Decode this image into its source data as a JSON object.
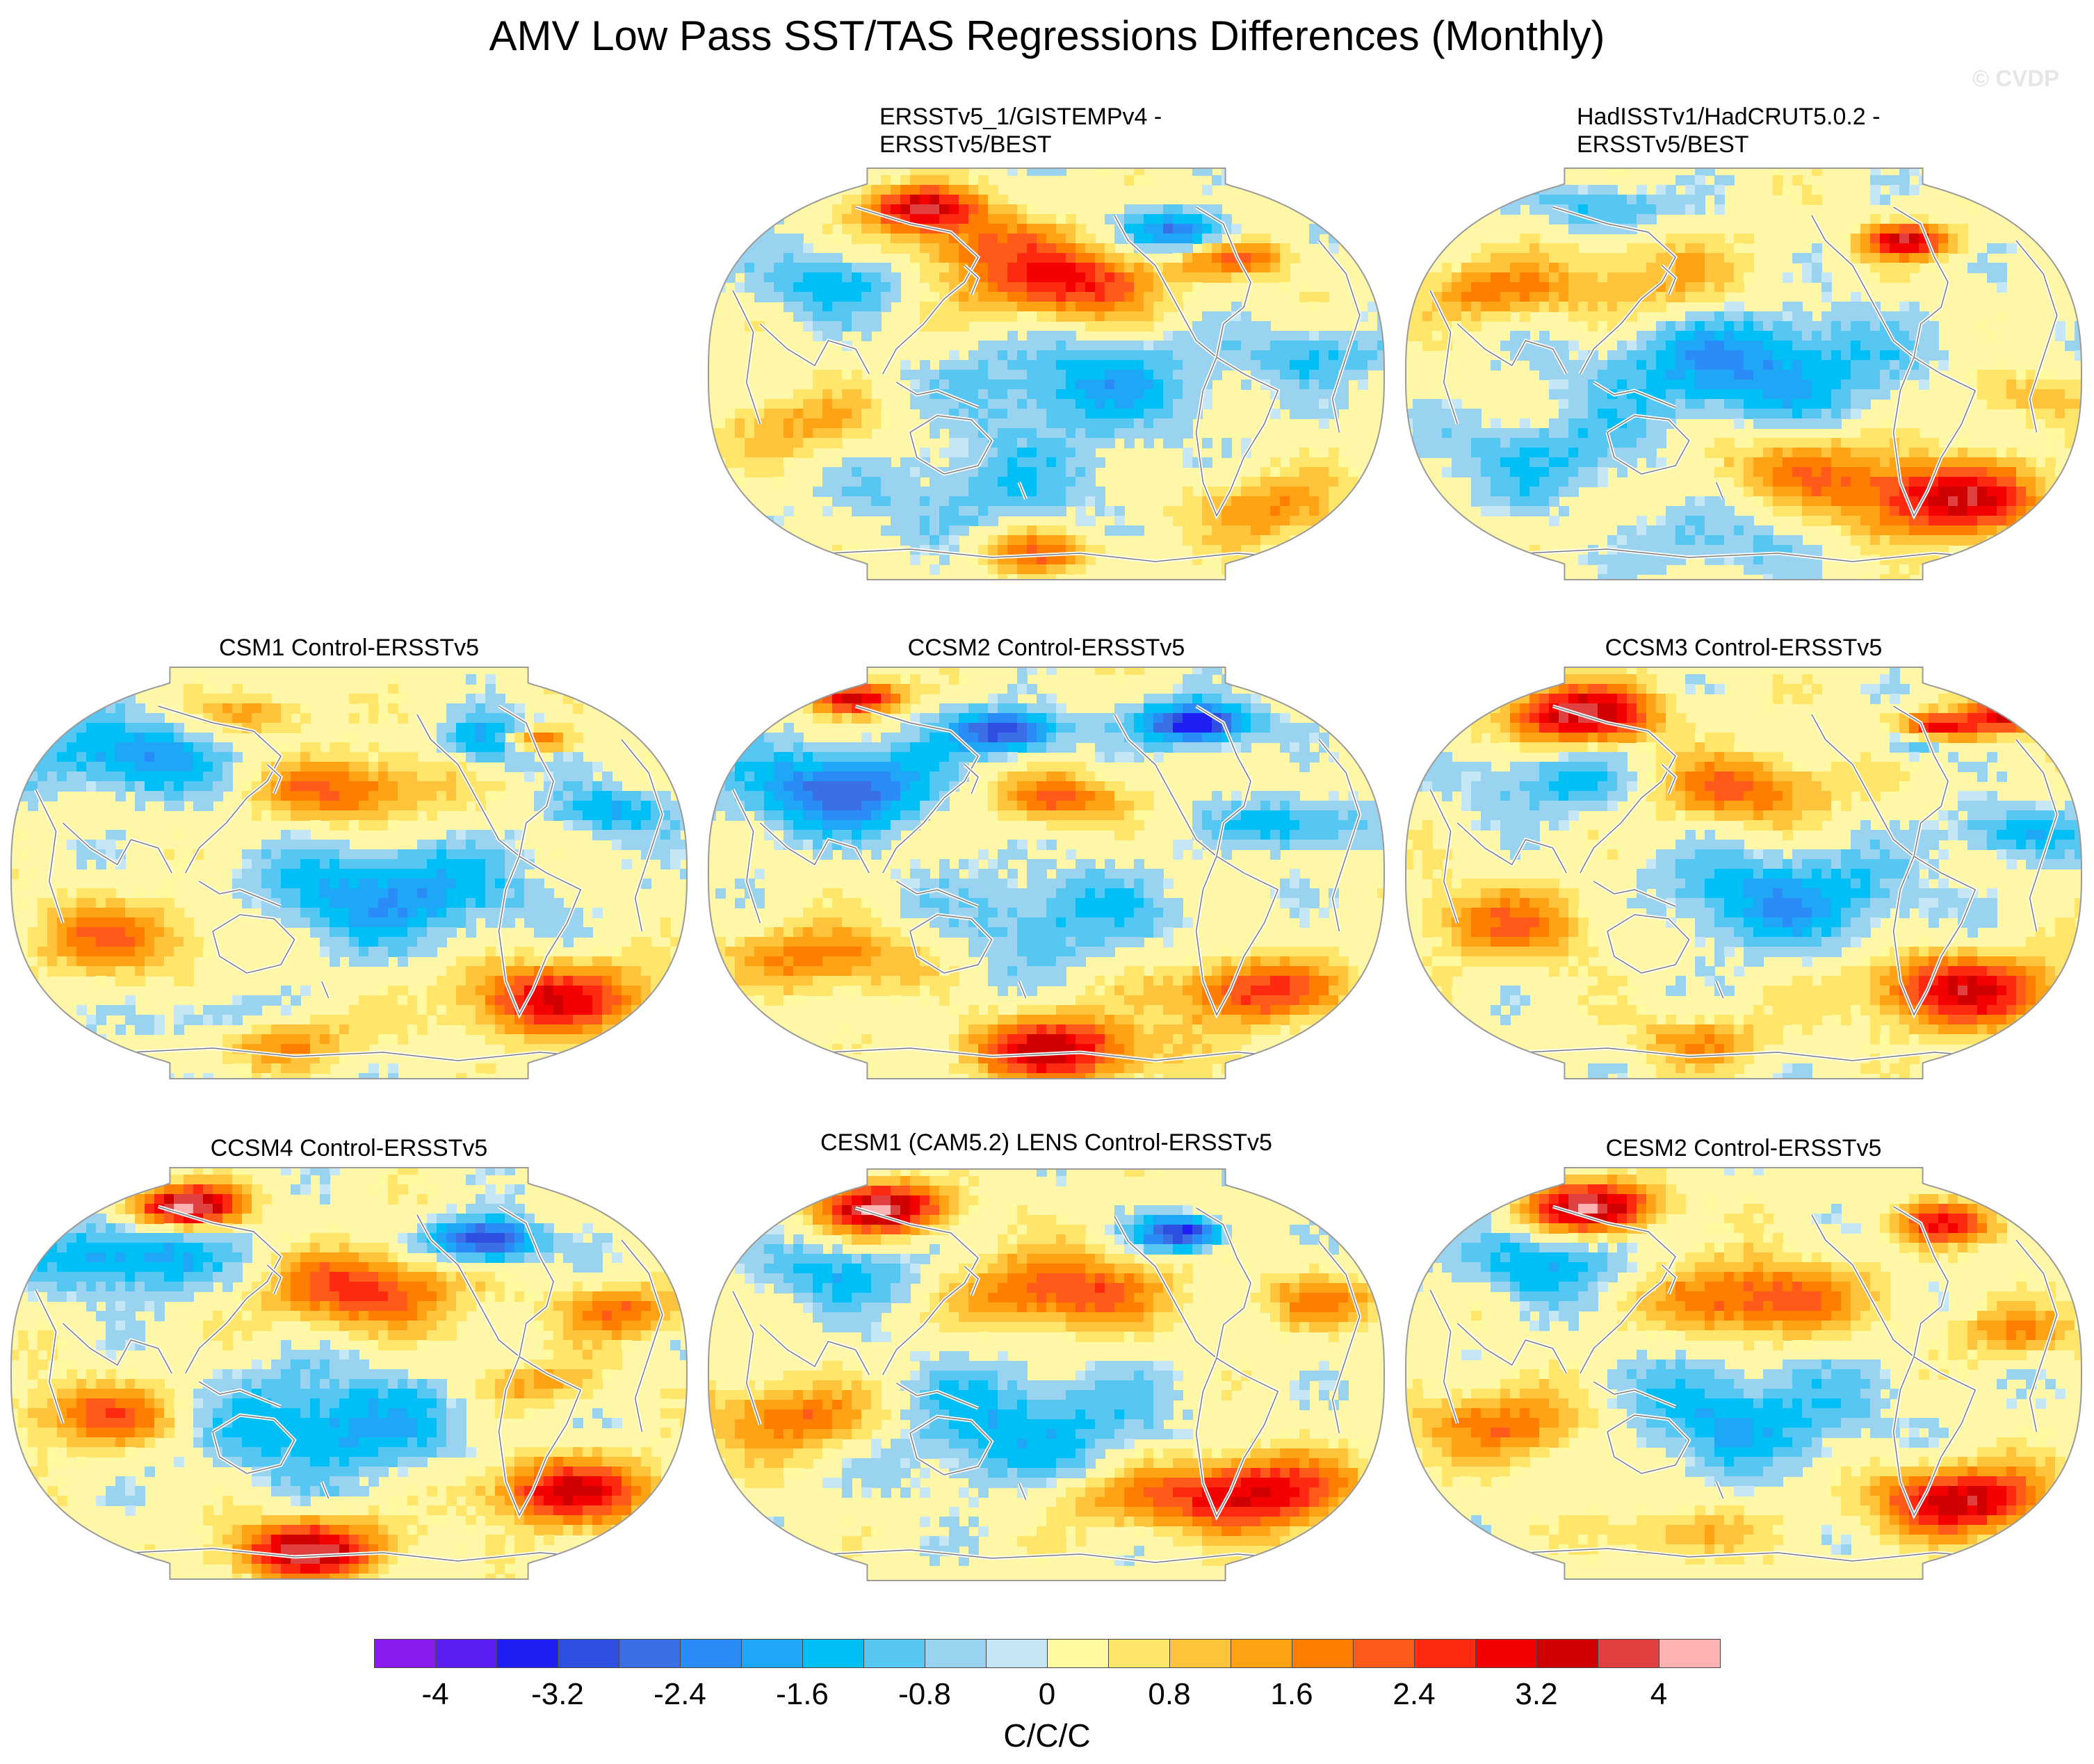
{
  "figure": {
    "title": "AMV Low Pass SST/TAS Regressions Differences (Monthly)",
    "watermark": "© CVDP"
  },
  "panels": [
    {
      "id": "p1",
      "title_lines": [
        "ERSSTv5_1/GISTEMPv4 -",
        "ERSSTv5/BEST"
      ],
      "seed": 3,
      "blobs": [
        [
          0.52,
          0.28,
          3.0,
          0.09
        ],
        [
          0.38,
          0.18,
          1.6,
          0.07
        ],
        [
          0.56,
          0.52,
          -1.6,
          0.12
        ],
        [
          0.7,
          0.16,
          -2.6,
          0.05
        ],
        [
          0.32,
          0.1,
          3.6,
          0.05
        ],
        [
          0.78,
          0.22,
          2.0,
          0.05
        ],
        [
          0.4,
          0.78,
          -1.0,
          0.14
        ],
        [
          0.82,
          0.82,
          1.6,
          0.08
        ],
        [
          0.48,
          0.92,
          2.0,
          0.06
        ],
        [
          0.14,
          0.62,
          1.4,
          0.08
        ],
        [
          0.18,
          0.28,
          -1.4,
          0.08
        ],
        [
          0.9,
          0.45,
          -1.2,
          0.07
        ]
      ]
    },
    {
      "id": "p2",
      "title_lines": [
        "HadISSTv1/HadCRUT5.0.2 -",
        "ERSSTv5/BEST"
      ],
      "seed": 7,
      "blobs": [
        [
          0.5,
          0.48,
          -2.0,
          0.14
        ],
        [
          0.8,
          0.8,
          3.4,
          0.09
        ],
        [
          0.36,
          0.28,
          1.4,
          0.1
        ],
        [
          0.74,
          0.18,
          3.6,
          0.04
        ],
        [
          0.3,
          0.1,
          -1.4,
          0.06
        ],
        [
          0.12,
          0.3,
          1.6,
          0.07
        ],
        [
          0.2,
          0.7,
          -1.2,
          0.1
        ],
        [
          0.58,
          0.72,
          1.6,
          0.09
        ],
        [
          0.9,
          0.55,
          1.2,
          0.06
        ],
        [
          0.46,
          0.9,
          -1.0,
          0.08
        ]
      ]
    },
    {
      "id": "p3",
      "title_lines": [
        "CSM1 Control-ERSSTv5"
      ],
      "seed": 11,
      "blobs": [
        [
          0.5,
          0.3,
          2.2,
          0.08
        ],
        [
          0.56,
          0.55,
          -2.0,
          0.12
        ],
        [
          0.74,
          0.18,
          -3.4,
          0.05
        ],
        [
          0.77,
          0.18,
          4.6,
          0.035
        ],
        [
          0.8,
          0.8,
          3.0,
          0.09
        ],
        [
          0.18,
          0.22,
          -2.0,
          0.09
        ],
        [
          0.16,
          0.65,
          1.8,
          0.09
        ],
        [
          0.36,
          0.12,
          1.6,
          0.05
        ],
        [
          0.4,
          0.9,
          2.0,
          0.06
        ],
        [
          0.3,
          0.85,
          -1.2,
          0.06
        ],
        [
          0.9,
          0.35,
          -1.6,
          0.06
        ]
      ]
    },
    {
      "id": "p4",
      "title_lines": [
        "CCSM2 Control-ERSSTv5"
      ],
      "seed": 19,
      "blobs": [
        [
          0.5,
          0.32,
          2.4,
          0.06
        ],
        [
          0.2,
          0.3,
          -2.6,
          0.1
        ],
        [
          0.44,
          0.16,
          -3.4,
          0.05
        ],
        [
          0.72,
          0.14,
          -3.8,
          0.05
        ],
        [
          0.22,
          0.08,
          3.6,
          0.04
        ],
        [
          0.52,
          0.92,
          3.4,
          0.08
        ],
        [
          0.8,
          0.78,
          2.6,
          0.08
        ],
        [
          0.52,
          0.6,
          -1.2,
          0.12
        ],
        [
          0.18,
          0.7,
          2.0,
          0.08
        ],
        [
          0.86,
          0.38,
          -1.8,
          0.06
        ]
      ]
    },
    {
      "id": "p5",
      "title_lines": [
        "CCSM3 Control-ERSSTv5"
      ],
      "seed": 23,
      "blobs": [
        [
          0.26,
          0.12,
          3.8,
          0.07
        ],
        [
          0.22,
          0.28,
          -1.4,
          0.08
        ],
        [
          0.5,
          0.3,
          2.2,
          0.08
        ],
        [
          0.56,
          0.56,
          -1.8,
          0.12
        ],
        [
          0.76,
          0.18,
          -3.6,
          0.035
        ],
        [
          0.78,
          0.16,
          4.6,
          0.04
        ],
        [
          0.82,
          0.78,
          3.2,
          0.09
        ],
        [
          0.9,
          0.12,
          3.4,
          0.04
        ],
        [
          0.16,
          0.62,
          1.8,
          0.09
        ],
        [
          0.44,
          0.9,
          1.6,
          0.06
        ],
        [
          0.9,
          0.4,
          -1.6,
          0.06
        ]
      ]
    },
    {
      "id": "p6",
      "title_lines": [
        "CCSM4 Control-ERSSTv5"
      ],
      "seed": 29,
      "blobs": [
        [
          0.26,
          0.1,
          4.4,
          0.05
        ],
        [
          0.18,
          0.22,
          -2.0,
          0.09
        ],
        [
          0.52,
          0.3,
          2.6,
          0.09
        ],
        [
          0.46,
          0.62,
          -1.8,
          0.13
        ],
        [
          0.7,
          0.18,
          -3.6,
          0.05
        ],
        [
          0.44,
          0.92,
          3.8,
          0.07
        ],
        [
          0.82,
          0.78,
          3.2,
          0.08
        ],
        [
          0.14,
          0.6,
          2.2,
          0.08
        ],
        [
          0.9,
          0.35,
          2.0,
          0.06
        ],
        [
          0.78,
          0.52,
          1.4,
          0.06
        ]
      ]
    },
    {
      "id": "p7",
      "title_lines": [
        "CESM1 (CAM5.2) LENS Control-ERSSTv5"
      ],
      "seed": 31,
      "blobs": [
        [
          0.26,
          0.1,
          4.0,
          0.06
        ],
        [
          0.52,
          0.3,
          2.6,
          0.09
        ],
        [
          0.44,
          0.62,
          -1.6,
          0.14
        ],
        [
          0.7,
          0.16,
          -3.4,
          0.04
        ],
        [
          0.8,
          0.78,
          3.4,
          0.09
        ],
        [
          0.14,
          0.6,
          2.2,
          0.09
        ],
        [
          0.2,
          0.26,
          -1.4,
          0.08
        ],
        [
          0.9,
          0.32,
          1.6,
          0.06
        ],
        [
          0.6,
          0.8,
          1.2,
          0.07
        ]
      ]
    },
    {
      "id": "p8",
      "title_lines": [
        "CESM2 Control-ERSSTv5"
      ],
      "seed": 37,
      "blobs": [
        [
          0.28,
          0.1,
          4.0,
          0.06
        ],
        [
          0.52,
          0.32,
          2.6,
          0.09
        ],
        [
          0.48,
          0.6,
          -1.6,
          0.13
        ],
        [
          0.82,
          0.8,
          3.6,
          0.08
        ],
        [
          0.8,
          0.14,
          2.6,
          0.05
        ],
        [
          0.16,
          0.62,
          2.0,
          0.09
        ],
        [
          0.2,
          0.24,
          -1.6,
          0.08
        ],
        [
          0.9,
          0.4,
          1.6,
          0.06
        ],
        [
          0.4,
          0.88,
          1.4,
          0.06
        ]
      ]
    }
  ],
  "colorbar": {
    "colors": [
      "#8a1bf0",
      "#5a1ef2",
      "#1e1ef5",
      "#2f4fe0",
      "#3a6fe6",
      "#2a8cf7",
      "#1ea6f7",
      "#00bff5",
      "#56c6f2",
      "#9ad3ef",
      "#c4e6f5",
      "#fffaa0",
      "#ffe66a",
      "#ffc43c",
      "#ffa214",
      "#ff7d00",
      "#ff5a1a",
      "#ff2a10",
      "#f40000",
      "#d00000",
      "#e04040",
      "#ffb2b2"
    ],
    "labels": [
      "-4",
      "-3.2",
      "-2.4",
      "-1.6",
      "-0.8",
      "0",
      "0.8",
      "1.6",
      "2.4",
      "3.2",
      "4"
    ],
    "units": "C/C/C"
  }
}
